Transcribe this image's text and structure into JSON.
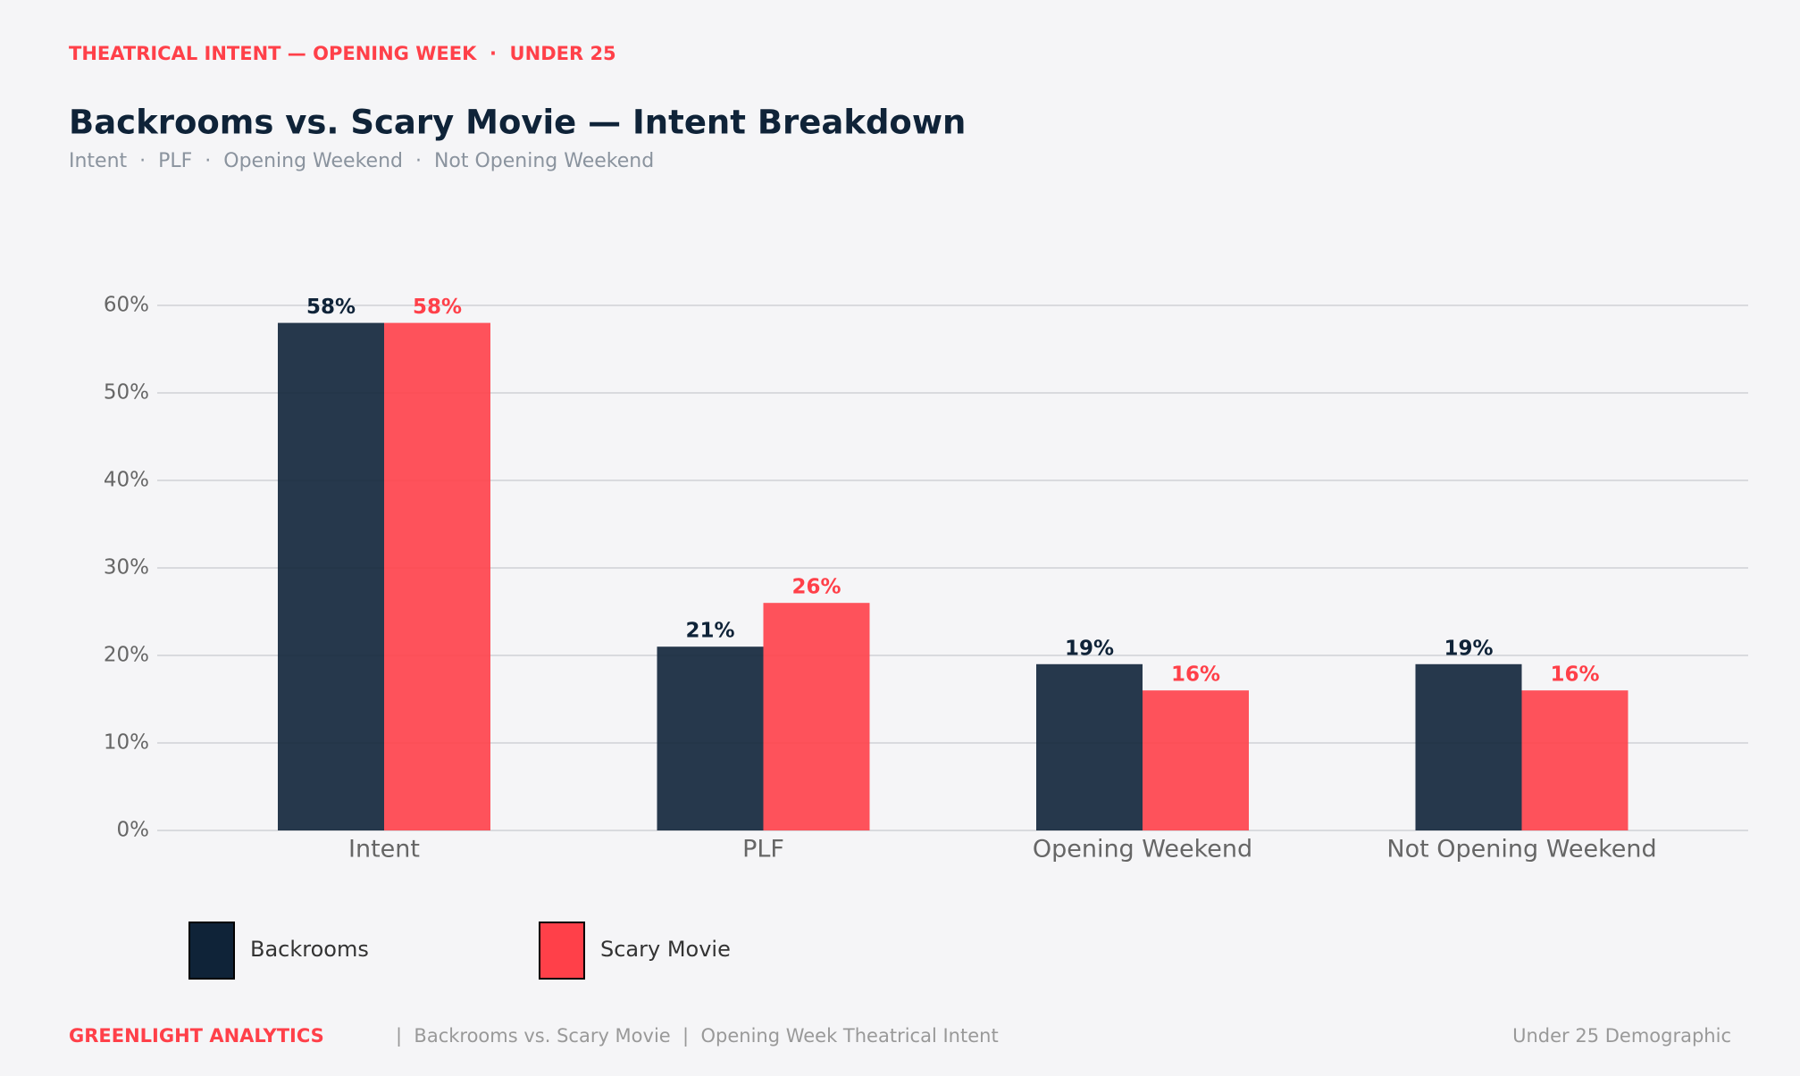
{
  "chart_data": {
    "type": "bar",
    "kicker": "THEATRICAL INTENT — OPENING WEEK  ·  UNDER 25",
    "title": "Backrooms vs. Scary Movie — Intent Breakdown",
    "subtitle": "Intent  ·  PLF  ·  Opening Weekend  ·  Not Opening Weekend",
    "categories": [
      "Intent",
      "PLF",
      "Opening Weekend",
      "Not Opening Weekend"
    ],
    "series": [
      {
        "name": "Backrooms",
        "color": "#0f2338",
        "values": [
          58,
          21,
          19,
          19
        ],
        "value_labels": [
          "58%",
          "21%",
          "19%",
          "19%"
        ]
      },
      {
        "name": "Scary Movie",
        "color": "#ff4049",
        "values": [
          58,
          26,
          16,
          16
        ],
        "value_labels": [
          "58%",
          "26%",
          "16%",
          "16%"
        ]
      }
    ],
    "ylim": [
      0,
      60
    ],
    "yticks": [
      {
        "value": 0,
        "label": "0%"
      },
      {
        "value": 10,
        "label": "10%"
      },
      {
        "value": 20,
        "label": "20%"
      },
      {
        "value": 30,
        "label": "30%"
      },
      {
        "value": 40,
        "label": "40%"
      },
      {
        "value": 50,
        "label": "50%"
      },
      {
        "value": 60,
        "label": "60%"
      }
    ],
    "grid": true,
    "legend": "bottom-left"
  },
  "footer": {
    "brand": "GREENLIGHT ANALYTICS",
    "text": "|  Backrooms vs. Scary Movie  |  Opening Week Theatrical Intent",
    "note": "Under 25 Demographic"
  }
}
